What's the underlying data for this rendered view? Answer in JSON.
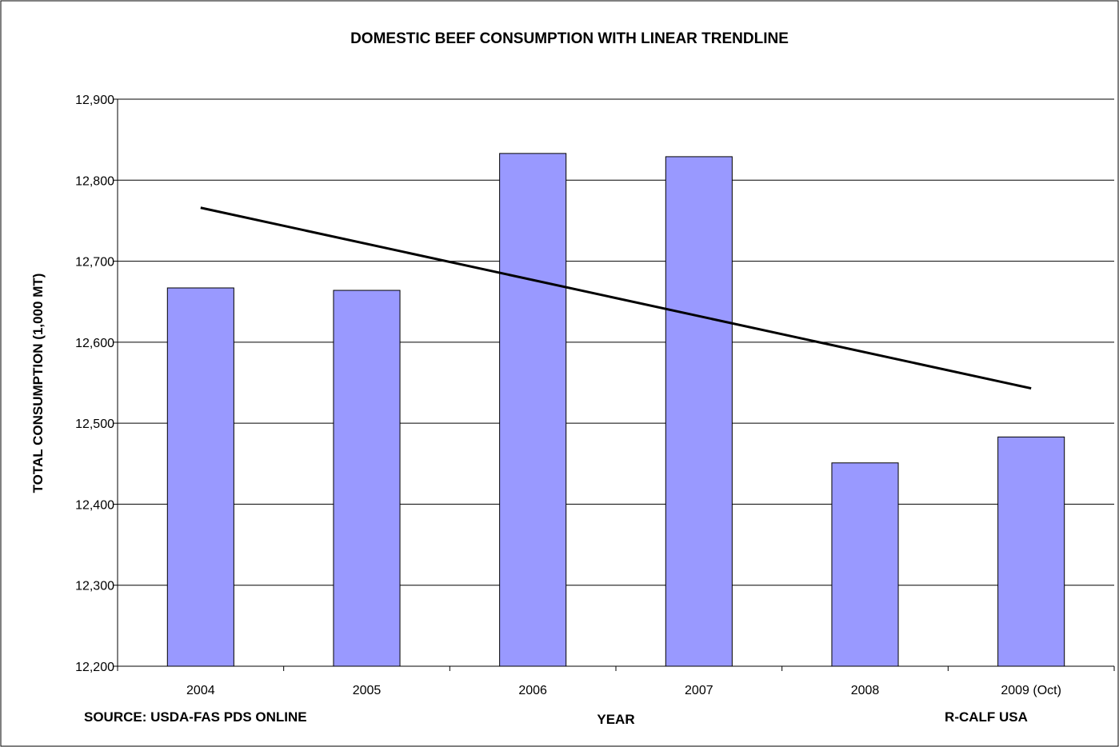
{
  "chart_data": {
    "type": "bar",
    "title": "DOMESTIC BEEF CONSUMPTION WITH LINEAR TRENDLINE",
    "xlabel": "YEAR",
    "ylabel": "TOTAL CONSUMPTION (1,000 MT)",
    "categories": [
      "2004",
      "2005",
      "2006",
      "2007",
      "2008",
      "2009 (Oct)"
    ],
    "values": [
      12667,
      12664,
      12833,
      12829,
      12451,
      12483
    ],
    "trendline": {
      "type": "linear",
      "start": 12766,
      "end": 12543
    },
    "ylim": [
      12200,
      12900
    ],
    "yticks": [
      12200,
      12300,
      12400,
      12500,
      12600,
      12700,
      12800,
      12900
    ],
    "ytick_labels": [
      "12,200",
      "12,300",
      "12,400",
      "12,500",
      "12,600",
      "12,700",
      "12,800",
      "12,900"
    ],
    "grid": true,
    "bar_color": "#9999ff",
    "trend_color": "#000000",
    "source": "SOURCE:  USDA-FAS PDS ONLINE",
    "credit": "R-CALF USA"
  }
}
